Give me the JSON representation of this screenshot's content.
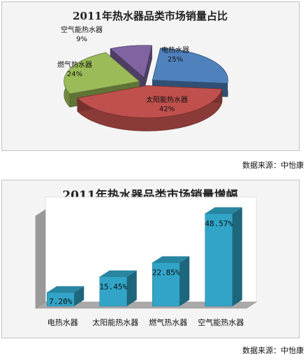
{
  "chart_data": [
    {
      "type": "pie",
      "title": "2011年热水器品类市场销量占比",
      "categories": [
        "电热水器",
        "太阳能热水器",
        "燃气热水器",
        "空气能热水器"
      ],
      "values": [
        25,
        42,
        24,
        9
      ],
      "value_labels": [
        "25%",
        "42%",
        "24%",
        "9%"
      ],
      "colors": [
        "#4f81bd",
        "#c0504d",
        "#9bbb59",
        "#8064a2"
      ],
      "legend": "none",
      "three_d": true
    },
    {
      "type": "bar",
      "title": "2011年热水器品类市场销量增幅",
      "categories": [
        "电热水器",
        "太阳能热水器",
        "燃气热水器",
        "空气能热水器"
      ],
      "values": [
        7.2,
        15.45,
        22.85,
        48.57
      ],
      "value_labels": [
        "7.20%",
        "15.45%",
        "22.85%",
        "48.57%"
      ],
      "xlabel": "",
      "ylabel": "",
      "ylim": [
        0,
        55
      ],
      "grid": false,
      "colors": [
        "#31a4c7"
      ],
      "three_d": true
    }
  ],
  "sources": {
    "top": "数据来源：中怡康",
    "bottom": "数据来源：中怡康"
  }
}
